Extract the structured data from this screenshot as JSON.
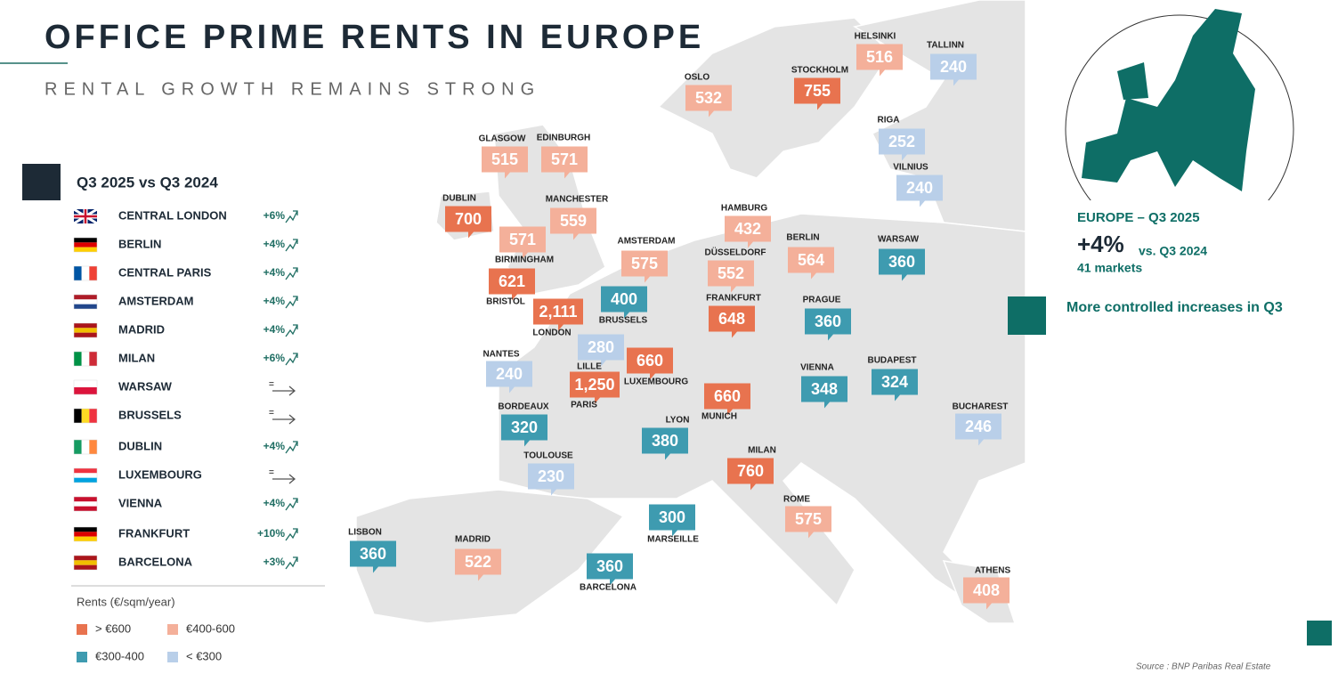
{
  "header": {
    "title": "OFFICE PRIME RENTS IN EUROPE",
    "subtitle": "RENTAL GROWTH REMAINS STRONG"
  },
  "comparison": {
    "title": "Q3 2025 vs Q3 2024",
    "rows": [
      {
        "city": "CENTRAL LONDON",
        "change": "+6%"
      },
      {
        "city": "BERLIN",
        "change": "+4%"
      },
      {
        "city": "CENTRAL PARIS",
        "change": "+4%"
      },
      {
        "city": "AMSTERDAM",
        "change": "+4%"
      },
      {
        "city": "MADRID",
        "change": "+4%"
      },
      {
        "city": "MILAN",
        "change": "+6%"
      },
      {
        "city": "WARSAW",
        "change": "="
      },
      {
        "city": "BRUSSELS",
        "change": "="
      },
      {
        "city": "DUBLIN",
        "change": "+4%"
      },
      {
        "city": "LUXEMBOURG",
        "change": "="
      },
      {
        "city": "VIENNA",
        "change": "+4%"
      },
      {
        "city": "FRANKFURT",
        "change": "+10%"
      },
      {
        "city": "BARCELONA",
        "change": "+3%"
      }
    ]
  },
  "legend": {
    "title": "Rents (€/sqm/year)",
    "items": [
      {
        "label": "> €600",
        "color": "#e8734f"
      },
      {
        "label": "€400-600",
        "color": "#f4b09a"
      },
      {
        "label": "€300-400",
        "color": "#3e9bb0"
      },
      {
        "label": "< €300",
        "color": "#b9cfe9"
      }
    ]
  },
  "markers": [
    {
      "city": "HELSINKI",
      "rent": "516",
      "color": "#f4b09a"
    },
    {
      "city": "TALLINN",
      "rent": "240",
      "color": "#b9cfe9"
    },
    {
      "city": "OSLO",
      "rent": "532",
      "color": "#f4b09a"
    },
    {
      "city": "STOCKHOLM",
      "rent": "755",
      "color": "#e8734f"
    },
    {
      "city": "RIGA",
      "rent": "252",
      "color": "#b9cfe9"
    },
    {
      "city": "GLASGOW",
      "rent": "515",
      "color": "#f4b09a"
    },
    {
      "city": "EDINBURGH",
      "rent": "571",
      "color": "#f4b09a"
    },
    {
      "city": "VILNIUS",
      "rent": "240",
      "color": "#b9cfe9"
    },
    {
      "city": "DUBLIN",
      "rent": "700",
      "color": "#e8734f"
    },
    {
      "city": "MANCHESTER",
      "rent": "559",
      "color": "#f4b09a"
    },
    {
      "city": "HAMBURG",
      "rent": "432",
      "color": "#f4b09a"
    },
    {
      "city": "BIRMINGHAM",
      "rent": "571",
      "color": "#f4b09a"
    },
    {
      "city": "BERLIN",
      "rent": "564",
      "color": "#f4b09a"
    },
    {
      "city": "WARSAW",
      "rent": "360",
      "color": "#3e9bb0"
    },
    {
      "city": "AMSTERDAM",
      "rent": "575",
      "color": "#f4b09a"
    },
    {
      "city": "DÜSSELDORF",
      "rent": "552",
      "color": "#f4b09a"
    },
    {
      "city": "BRISTOL",
      "rent": "621",
      "color": "#e8734f"
    },
    {
      "city": "LONDON",
      "rent": "2,111",
      "color": "#e8734f"
    },
    {
      "city": "BRUSSELS",
      "rent": "400",
      "color": "#3e9bb0"
    },
    {
      "city": "FRANKFURT",
      "rent": "648",
      "color": "#e8734f"
    },
    {
      "city": "PRAGUE",
      "rent": "360",
      "color": "#3e9bb0"
    },
    {
      "city": "LILLE",
      "rent": "280",
      "color": "#b9cfe9"
    },
    {
      "city": "NANTES",
      "rent": "240",
      "color": "#b9cfe9"
    },
    {
      "city": "LUXEMBOURG",
      "rent": "660",
      "color": "#e8734f"
    },
    {
      "city": "PARIS",
      "rent": "1,250",
      "color": "#e8734f"
    },
    {
      "city": "VIENNA",
      "rent": "348",
      "color": "#3e9bb0"
    },
    {
      "city": "BUDAPEST",
      "rent": "324",
      "color": "#3e9bb0"
    },
    {
      "city": "MUNICH",
      "rent": "660",
      "color": "#e8734f"
    },
    {
      "city": "BUCHAREST",
      "rent": "246",
      "color": "#b9cfe9"
    },
    {
      "city": "BORDEAUX",
      "rent": "320",
      "color": "#3e9bb0"
    },
    {
      "city": "LYON",
      "rent": "380",
      "color": "#3e9bb0"
    },
    {
      "city": "MILAN",
      "rent": "760",
      "color": "#e8734f"
    },
    {
      "city": "TOULOUSE",
      "rent": "230",
      "color": "#b9cfe9"
    },
    {
      "city": "ROME",
      "rent": "575",
      "color": "#f4b09a"
    },
    {
      "city": "MARSEILLE",
      "rent": "300",
      "color": "#3e9bb0"
    },
    {
      "city": "LISBON",
      "rent": "360",
      "color": "#3e9bb0"
    },
    {
      "city": "MADRID",
      "rent": "522",
      "color": "#f4b09a"
    },
    {
      "city": "BARCELONA",
      "rent": "360",
      "color": "#3e9bb0"
    },
    {
      "city": "ATHENS",
      "rent": "408",
      "color": "#f4b09a"
    }
  ],
  "summary": {
    "title": "EUROPE – Q3 2025",
    "change": "+4%",
    "comparison": "vs. Q3 2024",
    "markets": "41 markets",
    "note": "More controlled increases in Q3"
  },
  "source": "Source : BNP Paribas Real Estate"
}
